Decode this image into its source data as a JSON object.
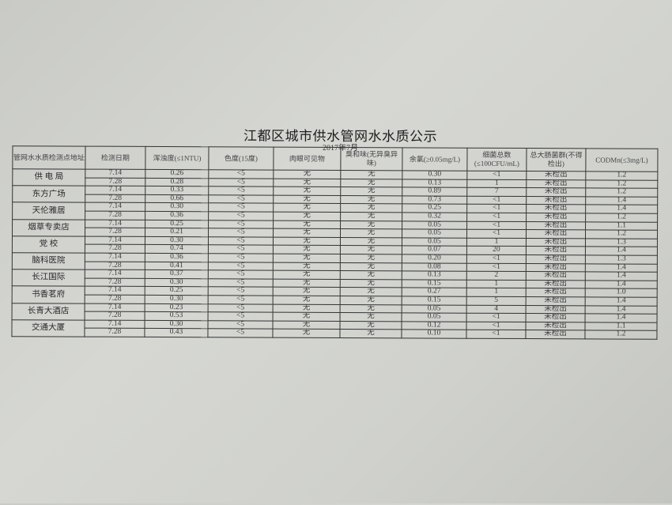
{
  "title": "江都区城市供水管网水水质公示",
  "subtitle": "2017年7月",
  "table": {
    "headers": [
      "管网水水质检测点地址",
      "检测日期",
      "浑浊度(≤1NTU)",
      "色度(15度)",
      "肉眼可见物",
      "臭和味(无异臭异味)",
      "余氯(≥0.05mg/L)",
      "细菌总数(≤100CFU/mL)",
      "总大肠菌群(不得检出)",
      "CODMn(≤3mg/L)"
    ],
    "sites": [
      {
        "name": "供 电 局",
        "rows": [
          [
            "7.14",
            "0.26",
            "<5",
            "无",
            "无",
            "0.30",
            "<1",
            "未检出",
            "1.2"
          ],
          [
            "7.28",
            "0.28",
            "<5",
            "无",
            "无",
            "0.13",
            "1",
            "未检出",
            "1.2"
          ]
        ]
      },
      {
        "name": "东方广场",
        "rows": [
          [
            "7.14",
            "0.33",
            "<5",
            "无",
            "无",
            "0.89",
            "7",
            "未检出",
            "1.2"
          ],
          [
            "7.28",
            "0.66",
            "<5",
            "无",
            "无",
            "0.73",
            "<1",
            "未检出",
            "1.4"
          ]
        ]
      },
      {
        "name": "天伦雅居",
        "rows": [
          [
            "7.14",
            "0.30",
            "<5",
            "无",
            "无",
            "0.25",
            "<1",
            "未检出",
            "1.4"
          ],
          [
            "7.28",
            "0.36",
            "<5",
            "无",
            "无",
            "0.32",
            "<1",
            "未检出",
            "1.2"
          ]
        ]
      },
      {
        "name": "烟草专卖店",
        "rows": [
          [
            "7.14",
            "0.25",
            "<5",
            "无",
            "无",
            "0.05",
            "<1",
            "未检出",
            "1.1"
          ],
          [
            "7.28",
            "0.21",
            "<5",
            "无",
            "无",
            "0.05",
            "<1",
            "未检出",
            "1.2"
          ]
        ]
      },
      {
        "name": "党  校",
        "rows": [
          [
            "7.14",
            "0.30",
            "<5",
            "无",
            "无",
            "0.05",
            "1",
            "未检出",
            "1.3"
          ],
          [
            "7.28",
            "0.74",
            "<5",
            "无",
            "无",
            "0.07",
            "20",
            "未检出",
            "1.4"
          ]
        ]
      },
      {
        "name": "脑科医院",
        "rows": [
          [
            "7.14",
            "0.36",
            "<5",
            "无",
            "无",
            "0.20",
            "<1",
            "未检出",
            "1.3"
          ],
          [
            "7.28",
            "0.41",
            "<5",
            "无",
            "无",
            "0.08",
            "<1",
            "未检出",
            "1.4"
          ]
        ]
      },
      {
        "name": "长江国际",
        "rows": [
          [
            "7.14",
            "0.37",
            "<5",
            "无",
            "无",
            "0.13",
            "2",
            "未检出",
            "1.4"
          ],
          [
            "7.28",
            "0.30",
            "<5",
            "无",
            "无",
            "0.15",
            "1",
            "未检出",
            "1.4"
          ]
        ]
      },
      {
        "name": "书香茗府",
        "rows": [
          [
            "7.14",
            "0.25",
            "<5",
            "无",
            "无",
            "0.27",
            "1",
            "未检出",
            "1.0"
          ],
          [
            "7.28",
            "0.30",
            "<5",
            "无",
            "无",
            "0.15",
            "5",
            "未检出",
            "1.4"
          ]
        ]
      },
      {
        "name": "长青大酒店",
        "rows": [
          [
            "7.14",
            "0.23",
            "<5",
            "无",
            "无",
            "0.05",
            "4",
            "未检出",
            "1.4"
          ],
          [
            "7.28",
            "0.53",
            "<5",
            "无",
            "无",
            "0.05",
            "<1",
            "未检出",
            "1.4"
          ]
        ]
      },
      {
        "name": "交通大厦",
        "rows": [
          [
            "7.14",
            "0.30",
            "<5",
            "无",
            "无",
            "0.12",
            "<1",
            "未检出",
            "1.1"
          ],
          [
            "7.28",
            "0.43",
            "<5",
            "无",
            "无",
            "0.10",
            "<1",
            "未检出",
            "1.2"
          ]
        ]
      }
    ]
  }
}
